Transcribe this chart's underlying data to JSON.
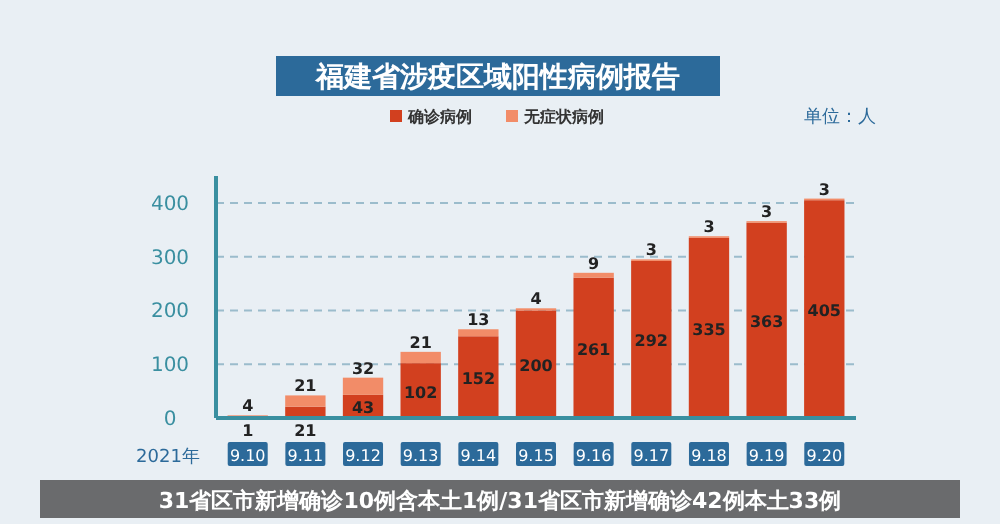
{
  "chart_data": {
    "type": "bar",
    "title": "福建省涉疫区域阳性病例报告",
    "xlabel": "2021年",
    "stacked": true,
    "categories": [
      "9.10",
      "9.11",
      "9.12",
      "9.13",
      "9.14",
      "9.15",
      "9.16",
      "9.17",
      "9.18",
      "9.19",
      "9.20"
    ],
    "series": [
      {
        "name": "确诊病例",
        "color": "#d2401f",
        "values": [
          1,
          21,
          43,
          102,
          152,
          200,
          261,
          292,
          335,
          363,
          405
        ]
      },
      {
        "name": "无症状病例",
        "color": "#f28c68",
        "values": [
          4,
          21,
          32,
          21,
          13,
          4,
          9,
          3,
          3,
          3,
          3
        ]
      }
    ],
    "ylim": [
      0,
      450
    ],
    "yticks": [
      0,
      100,
      200,
      300,
      400
    ],
    "grid": "y",
    "legend": "top",
    "data_labels": true,
    "annotations": [
      "单位：人",
      "31省区市新增确诊10例含本土1例/31省区市新增确诊42例本土33例"
    ]
  }
}
